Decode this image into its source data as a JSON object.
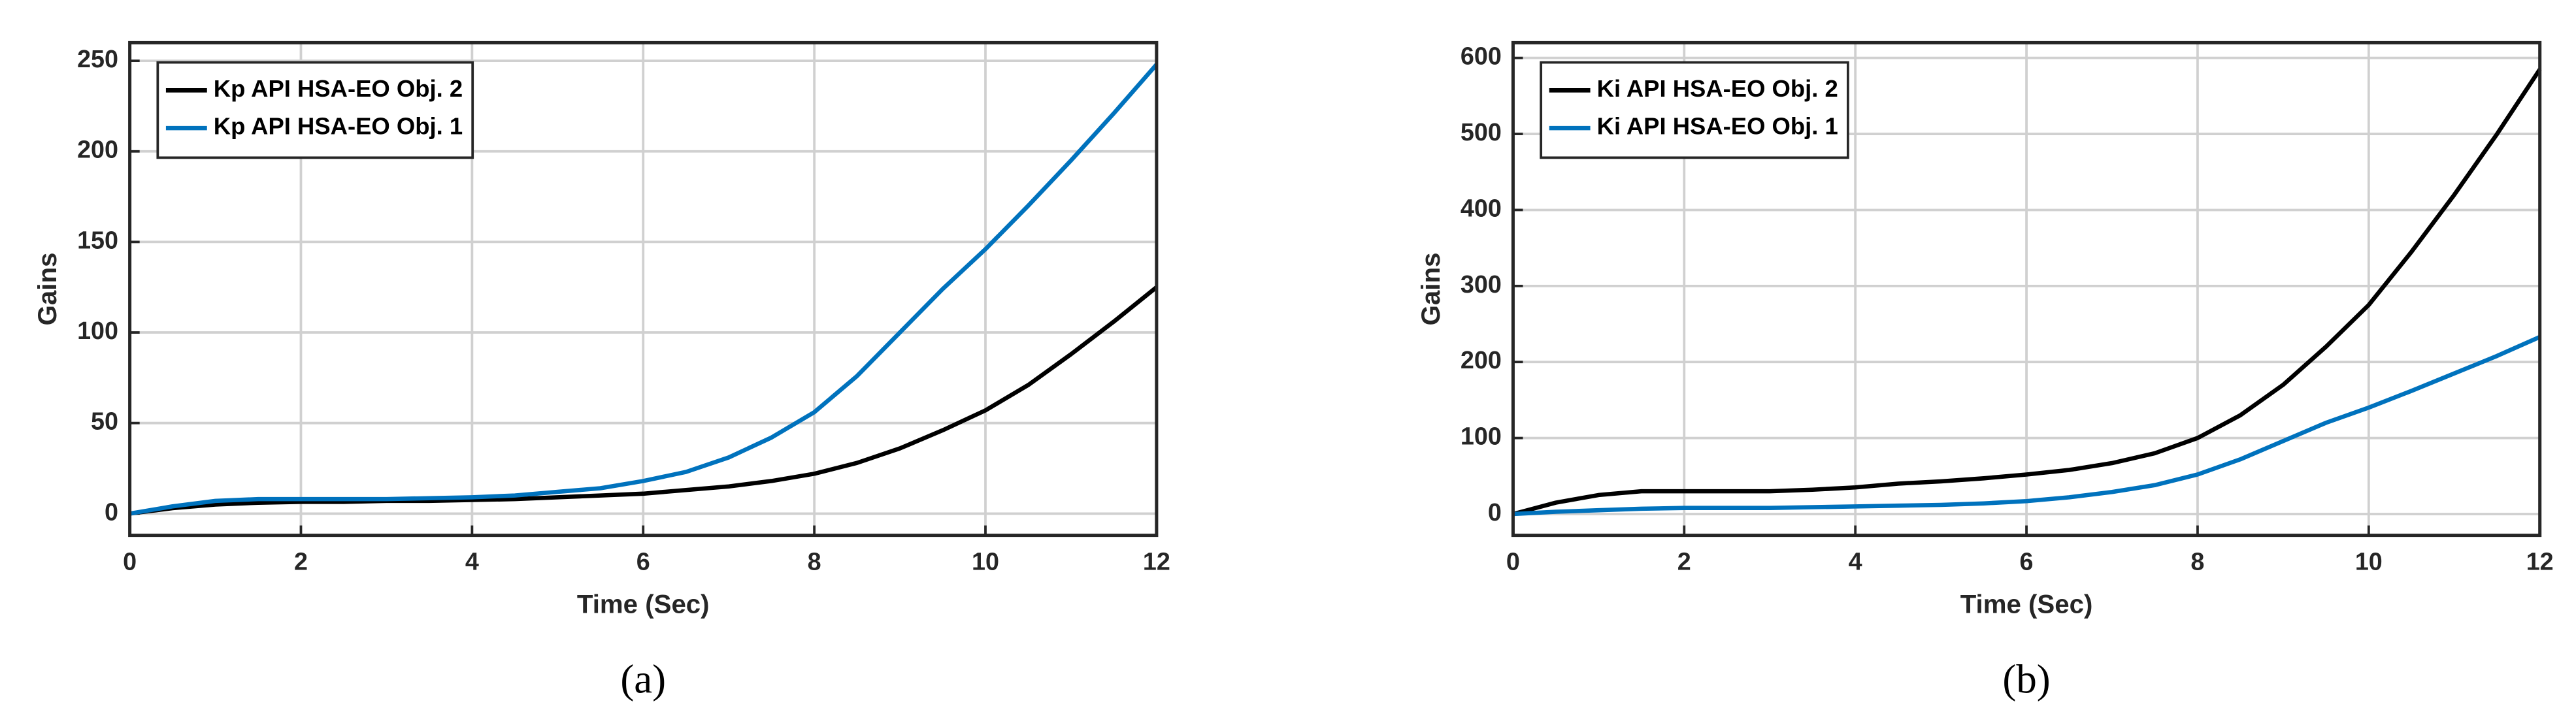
{
  "chart_data": [
    {
      "type": "line",
      "xlabel": "Time (Sec)",
      "ylabel": "Gains",
      "caption": "(a)",
      "x": [
        0,
        0.5,
        1,
        1.5,
        2,
        2.5,
        3,
        3.5,
        4,
        4.5,
        5,
        5.5,
        6,
        6.5,
        7,
        7.5,
        8,
        8.5,
        9,
        9.5,
        10,
        10.5,
        11,
        11.5,
        12
      ],
      "series": [
        {
          "name": "Kp API HSA-EO Obj. 2",
          "color": "#000000",
          "values": [
            0,
            3,
            5,
            6,
            6.5,
            6.5,
            7,
            7,
            7.5,
            8,
            9,
            10,
            11,
            13,
            15,
            18,
            22,
            28,
            36,
            46,
            57,
            71,
            88,
            106,
            125
          ]
        },
        {
          "name": "Kp API HSA-EO Obj. 1",
          "color": "#0072bd",
          "values": [
            0,
            4,
            7,
            8,
            8,
            8,
            8,
            8.5,
            9,
            10,
            12,
            14,
            18,
            23,
            31,
            42,
            56,
            76,
            100,
            124,
            146,
            170,
            195,
            221,
            248
          ]
        }
      ],
      "xlim": [
        0,
        12
      ],
      "xticks": [
        0,
        2,
        4,
        6,
        8,
        10,
        12
      ],
      "ylim": [
        -12,
        260
      ],
      "yticks": [
        0,
        50,
        100,
        150,
        200,
        250
      ],
      "grid": true,
      "legend": "upper-left"
    },
    {
      "type": "line",
      "xlabel": "Time (Sec)",
      "ylabel": "Gains",
      "caption": "(b)",
      "x": [
        0,
        0.5,
        1,
        1.5,
        2,
        2.5,
        3,
        3.5,
        4,
        4.5,
        5,
        5.5,
        6,
        6.5,
        7,
        7.5,
        8,
        8.5,
        9,
        9.5,
        10,
        10.5,
        11,
        11.5,
        12
      ],
      "series": [
        {
          "name": "Ki API HSA-EO Obj. 2",
          "color": "#000000",
          "values": [
            0,
            15,
            25,
            30,
            30,
            30,
            30,
            32,
            35,
            40,
            43,
            47,
            52,
            58,
            67,
            80,
            100,
            130,
            170,
            220,
            275,
            345,
            420,
            500,
            585
          ]
        },
        {
          "name": "Ki API HSA-EO Obj. 1",
          "color": "#0072bd",
          "values": [
            0,
            3,
            5,
            7,
            8,
            8,
            8,
            9,
            10,
            11,
            12,
            14,
            17,
            22,
            29,
            38,
            52,
            72,
            96,
            120,
            140,
            162,
            185,
            208,
            233
          ]
        }
      ],
      "xlim": [
        0,
        12
      ],
      "xticks": [
        0,
        2,
        4,
        6,
        8,
        10,
        12
      ],
      "ylim": [
        -28,
        620
      ],
      "yticks": [
        0,
        100,
        200,
        300,
        400,
        500,
        600
      ],
      "grid": true,
      "legend": "upper-left"
    }
  ]
}
